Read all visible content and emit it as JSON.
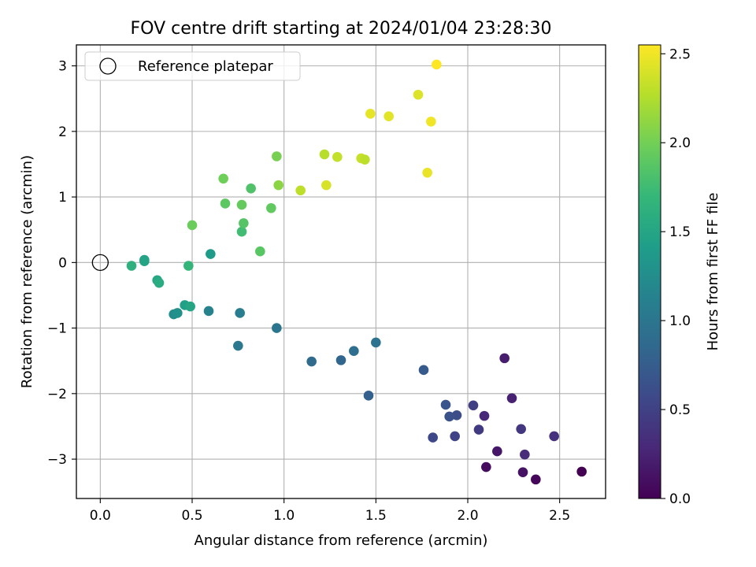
{
  "chart_data": {
    "type": "scatter",
    "title": "FOV centre drift starting at 2024/01/04 23:28:30",
    "xlabel": "Angular distance from reference (arcmin)",
    "ylabel": "Rotation from reference (arcmin)",
    "xlim": [
      -0.13,
      2.75
    ],
    "ylim": [
      -3.6,
      3.32
    ],
    "xticks": [
      0.0,
      0.5,
      1.0,
      1.5,
      2.0,
      2.5
    ],
    "xtick_labels": [
      "0.0",
      "0.5",
      "1.0",
      "1.5",
      "2.0",
      "2.5"
    ],
    "yticks": [
      -3,
      -2,
      -1,
      0,
      1,
      2,
      3
    ],
    "ytick_labels": [
      "−3",
      "−2",
      "−1",
      "0",
      "1",
      "2",
      "3"
    ],
    "grid": true,
    "legend": {
      "placement": "top-left",
      "entries": [
        {
          "label": "Reference platepar",
          "marker": "open-circle"
        }
      ]
    },
    "reference_point": {
      "x": 0.0,
      "y": 0.0
    },
    "colorbar": {
      "label": "Hours from first FF file",
      "range": [
        0.0,
        2.55
      ],
      "ticks": [
        0.0,
        0.5,
        1.0,
        1.5,
        2.0,
        2.5
      ],
      "tick_labels": [
        "0.0",
        "0.5",
        "1.0",
        "1.5",
        "2.0",
        "2.5"
      ],
      "colormap": "viridis",
      "colors": [
        "#440154",
        "#482878",
        "#3e4989",
        "#31688e",
        "#26828e",
        "#1f9e89",
        "#35b779",
        "#6ece58",
        "#b5de2b",
        "#fde725"
      ]
    },
    "points": [
      {
        "x": 2.62,
        "y": -3.19,
        "c": 0.0
      },
      {
        "x": 2.37,
        "y": -3.31,
        "c": 0.04
      },
      {
        "x": 2.1,
        "y": -3.12,
        "c": 0.08
      },
      {
        "x": 2.3,
        "y": -3.2,
        "c": 0.12
      },
      {
        "x": 2.16,
        "y": -2.88,
        "c": 0.16
      },
      {
        "x": 2.2,
        "y": -1.46,
        "c": 0.2
      },
      {
        "x": 2.24,
        "y": -2.07,
        "c": 0.24
      },
      {
        "x": 2.09,
        "y": -2.34,
        "c": 0.28
      },
      {
        "x": 2.31,
        "y": -2.93,
        "c": 0.32
      },
      {
        "x": 2.47,
        "y": -2.65,
        "c": 0.36
      },
      {
        "x": 2.29,
        "y": -2.54,
        "c": 0.4
      },
      {
        "x": 2.06,
        "y": -2.55,
        "c": 0.44
      },
      {
        "x": 2.03,
        "y": -2.18,
        "c": 0.48
      },
      {
        "x": 1.93,
        "y": -2.65,
        "c": 0.52
      },
      {
        "x": 1.81,
        "y": -2.67,
        "c": 0.56
      },
      {
        "x": 1.94,
        "y": -2.33,
        "c": 0.6
      },
      {
        "x": 1.9,
        "y": -2.35,
        "c": 0.64
      },
      {
        "x": 1.88,
        "y": -2.17,
        "c": 0.68
      },
      {
        "x": 1.76,
        "y": -1.64,
        "c": 0.72
      },
      {
        "x": 1.46,
        "y": -2.03,
        "c": 0.78
      },
      {
        "x": 1.31,
        "y": -1.49,
        "c": 0.84
      },
      {
        "x": 1.15,
        "y": -1.51,
        "c": 0.88
      },
      {
        "x": 1.38,
        "y": -1.35,
        "c": 0.92
      },
      {
        "x": 1.5,
        "y": -1.22,
        "c": 0.96
      },
      {
        "x": 0.96,
        "y": -1.0,
        "c": 1.0
      },
      {
        "x": 0.75,
        "y": -1.27,
        "c": 1.04
      },
      {
        "x": 0.76,
        "y": -0.77,
        "c": 1.08
      },
      {
        "x": 0.59,
        "y": -0.74,
        "c": 1.14
      },
      {
        "x": 0.6,
        "y": 0.13,
        "c": 1.4
      },
      {
        "x": 0.4,
        "y": -0.79,
        "c": 1.24
      },
      {
        "x": 0.42,
        "y": -0.77,
        "c": 1.28
      },
      {
        "x": 0.46,
        "y": -0.65,
        "c": 1.44
      },
      {
        "x": 0.49,
        "y": -0.67,
        "c": 1.5
      },
      {
        "x": 0.24,
        "y": 0.04,
        "c": 1.46
      },
      {
        "x": 0.24,
        "y": 0.02,
        "c": 1.48
      },
      {
        "x": 0.31,
        "y": -0.27,
        "c": 1.52
      },
      {
        "x": 0.32,
        "y": -0.31,
        "c": 1.56
      },
      {
        "x": 0.17,
        "y": -0.05,
        "c": 1.62
      },
      {
        "x": 0.48,
        "y": -0.05,
        "c": 1.68
      },
      {
        "x": 0.77,
        "y": 0.47,
        "c": 1.76
      },
      {
        "x": 0.78,
        "y": 0.6,
        "c": 1.86
      },
      {
        "x": 0.87,
        "y": 0.17,
        "c": 1.88
      },
      {
        "x": 0.5,
        "y": 0.57,
        "c": 1.96
      },
      {
        "x": 0.68,
        "y": 0.9,
        "c": 1.9
      },
      {
        "x": 0.77,
        "y": 0.88,
        "c": 1.94
      },
      {
        "x": 0.93,
        "y": 0.83,
        "c": 1.92
      },
      {
        "x": 0.82,
        "y": 1.13,
        "c": 1.84
      },
      {
        "x": 0.67,
        "y": 1.28,
        "c": 1.98
      },
      {
        "x": 0.96,
        "y": 1.62,
        "c": 2.02
      },
      {
        "x": 0.97,
        "y": 1.18,
        "c": 2.1
      },
      {
        "x": 1.09,
        "y": 1.1,
        "c": 2.3
      },
      {
        "x": 1.23,
        "y": 1.18,
        "c": 2.4
      },
      {
        "x": 1.22,
        "y": 1.65,
        "c": 2.28
      },
      {
        "x": 1.29,
        "y": 1.61,
        "c": 2.32
      },
      {
        "x": 1.42,
        "y": 1.59,
        "c": 2.34
      },
      {
        "x": 1.44,
        "y": 1.57,
        "c": 2.3
      },
      {
        "x": 1.47,
        "y": 2.27,
        "c": 2.46
      },
      {
        "x": 1.57,
        "y": 2.23,
        "c": 2.44
      },
      {
        "x": 1.73,
        "y": 2.56,
        "c": 2.42
      },
      {
        "x": 1.83,
        "y": 3.02,
        "c": 2.55
      },
      {
        "x": 1.8,
        "y": 2.15,
        "c": 2.5
      },
      {
        "x": 1.78,
        "y": 1.37,
        "c": 2.47
      }
    ]
  }
}
